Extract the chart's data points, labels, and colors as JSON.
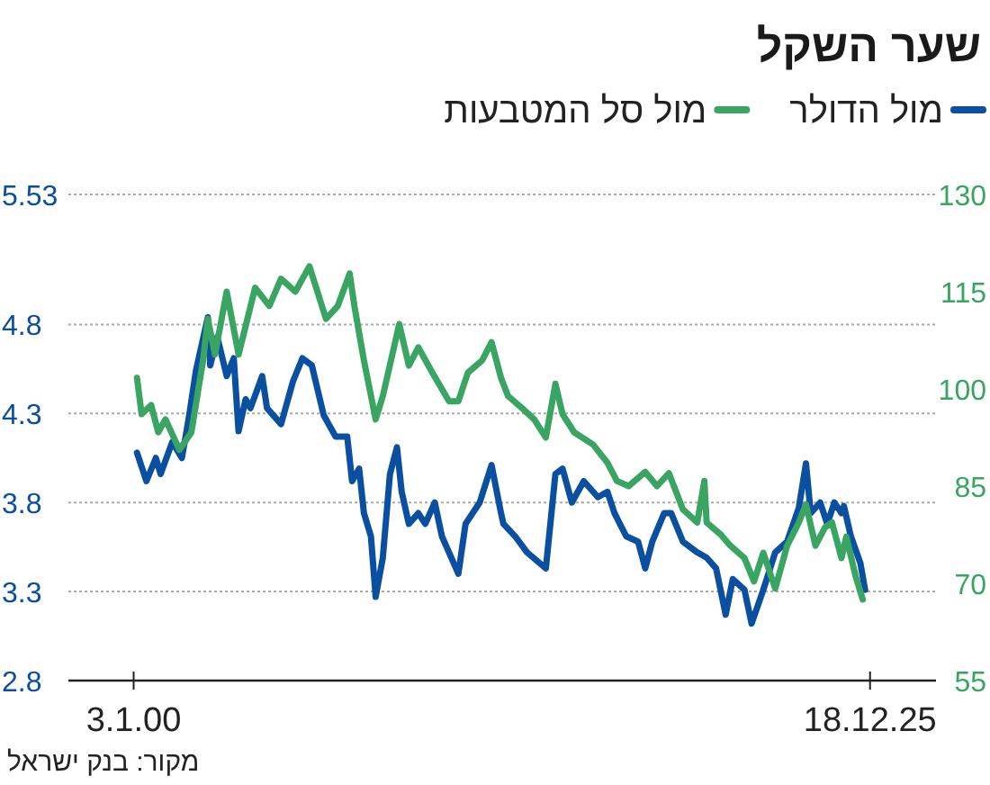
{
  "chart_data": {
    "type": "line",
    "title": "שער השקל",
    "annotations": [
      "מקור: בנק ישראל"
    ],
    "xlim": [
      "1997-09",
      "2028-04"
    ],
    "xticks": [
      {
        "value": "2000-01-03",
        "label": "3.1.00"
      },
      {
        "value": "2025-12-18",
        "label": "18.12.25"
      }
    ],
    "ylim": [
      2.8,
      5.53
    ],
    "yticks": [
      2.8,
      3.3,
      3.8,
      4.3,
      4.8,
      5.53
    ],
    "y2lim": [
      55,
      130
    ],
    "y2ticks": [
      55,
      70,
      85,
      100,
      115,
      130
    ],
    "grid": "y",
    "legend": "top",
    "line_style": "solid",
    "marker": "none",
    "series": [
      {
        "name": "מול הדולר",
        "color": "#0a4fa0",
        "x": [
          "2000-02",
          "2000-06",
          "2000-10",
          "2000-12",
          "2001-05",
          "2001-09",
          "2001-12",
          "2002-03",
          "2002-08",
          "2002-09",
          "2002-12",
          "2003-04",
          "2003-07",
          "2003-09",
          "2003-12",
          "2004-02",
          "2004-07",
          "2004-09",
          "2005-03",
          "2005-08",
          "2005-12",
          "2006-04",
          "2006-09",
          "2007-02",
          "2007-07",
          "2007-09",
          "2007-12",
          "2008-02",
          "2008-05",
          "2008-07",
          "2008-10",
          "2009-01",
          "2009-04",
          "2009-06",
          "2009-09",
          "2010-01",
          "2010-04",
          "2010-08",
          "2010-11",
          "2011-06",
          "2011-09",
          "2012-03",
          "2012-08",
          "2012-12",
          "2013-01",
          "2013-06",
          "2013-11",
          "2014-07",
          "2014-11",
          "2015-02",
          "2015-06",
          "2015-11",
          "2016-05",
          "2016-09",
          "2016-12",
          "2017-05",
          "2017-10",
          "2018-01",
          "2018-04",
          "2018-09",
          "2018-12",
          "2019-05",
          "2019-11",
          "2020-03",
          "2020-07",
          "2020-11",
          "2021-02",
          "2021-07",
          "2021-10",
          "2022-03",
          "2022-08",
          "2023-01",
          "2023-06",
          "2023-09",
          "2023-11",
          "2024-03",
          "2024-06",
          "2024-09",
          "2024-12",
          "2025-01",
          "2025-04",
          "2025-08",
          "2025-10"
        ],
        "values": [
          4.08,
          3.92,
          4.05,
          3.96,
          4.14,
          4.05,
          4.28,
          4.54,
          4.84,
          4.57,
          4.73,
          4.51,
          4.61,
          4.2,
          4.38,
          4.33,
          4.51,
          4.33,
          4.24,
          4.48,
          4.61,
          4.57,
          4.29,
          4.17,
          4.17,
          3.92,
          3.99,
          3.74,
          3.61,
          3.27,
          3.49,
          3.96,
          4.11,
          3.86,
          3.68,
          3.74,
          3.68,
          3.8,
          3.61,
          3.4,
          3.68,
          3.8,
          4.01,
          3.74,
          3.68,
          3.61,
          3.52,
          3.43,
          3.96,
          3.99,
          3.8,
          3.92,
          3.83,
          3.86,
          3.74,
          3.61,
          3.58,
          3.43,
          3.58,
          3.74,
          3.74,
          3.58,
          3.52,
          3.49,
          3.43,
          3.17,
          3.37,
          3.31,
          3.12,
          3.31,
          3.52,
          3.58,
          3.77,
          4.02,
          3.74,
          3.8,
          3.68,
          3.8,
          3.74,
          3.78,
          3.61,
          3.46,
          3.31
        ]
      },
      {
        "name": "מול סל המטבעות",
        "color": "#3aa562",
        "axis": "y2",
        "x": [
          "2000-02",
          "2000-04",
          "2000-08",
          "2000-11",
          "2001-02",
          "2001-08",
          "2002-01",
          "2002-06",
          "2002-08",
          "2002-11",
          "2003-04",
          "2003-09",
          "2004-04",
          "2004-10",
          "2005-03",
          "2005-09",
          "2006-03",
          "2006-10",
          "2007-03",
          "2007-08",
          "2007-10",
          "2008-02",
          "2008-07",
          "2008-10",
          "2009-05",
          "2009-09",
          "2010-01",
          "2010-07",
          "2011-02",
          "2011-06",
          "2011-10",
          "2012-04",
          "2012-08",
          "2012-12",
          "2013-03",
          "2013-09",
          "2014-02",
          "2014-07",
          "2014-11",
          "2015-02",
          "2015-07",
          "2016-03",
          "2016-09",
          "2017-01",
          "2017-06",
          "2018-01",
          "2018-06",
          "2018-11",
          "2019-05",
          "2019-11",
          "2020-02",
          "2020-03",
          "2020-09",
          "2021-01",
          "2021-07",
          "2021-11",
          "2022-03",
          "2022-08",
          "2023-01",
          "2023-06",
          "2023-09",
          "2024-01",
          "2024-05",
          "2024-08",
          "2024-12",
          "2025-02",
          "2025-06",
          "2025-09"
        ],
        "values": [
          101.7,
          96.1,
          97.5,
          93.3,
          95.3,
          90.6,
          93.3,
          104.4,
          110.8,
          105.3,
          115,
          105.3,
          115.6,
          112.8,
          117,
          115,
          118.9,
          110.8,
          112.8,
          117.8,
          112.8,
          104.4,
          95.3,
          98.9,
          110,
          103.6,
          106.4,
          102.5,
          98.1,
          98.1,
          102.5,
          104.4,
          107.2,
          101.7,
          98.9,
          97,
          95.3,
          92.5,
          100.8,
          96.1,
          93.3,
          91.4,
          88.6,
          85.8,
          85,
          87.2,
          85,
          87,
          81.4,
          79.4,
          85.8,
          79.4,
          77.5,
          75.8,
          73.9,
          70.3,
          74.7,
          69.2,
          75.8,
          79.4,
          82.2,
          75.8,
          78.6,
          79.4,
          73.9,
          77.2,
          71.1,
          67.5
        ]
      }
    ]
  }
}
